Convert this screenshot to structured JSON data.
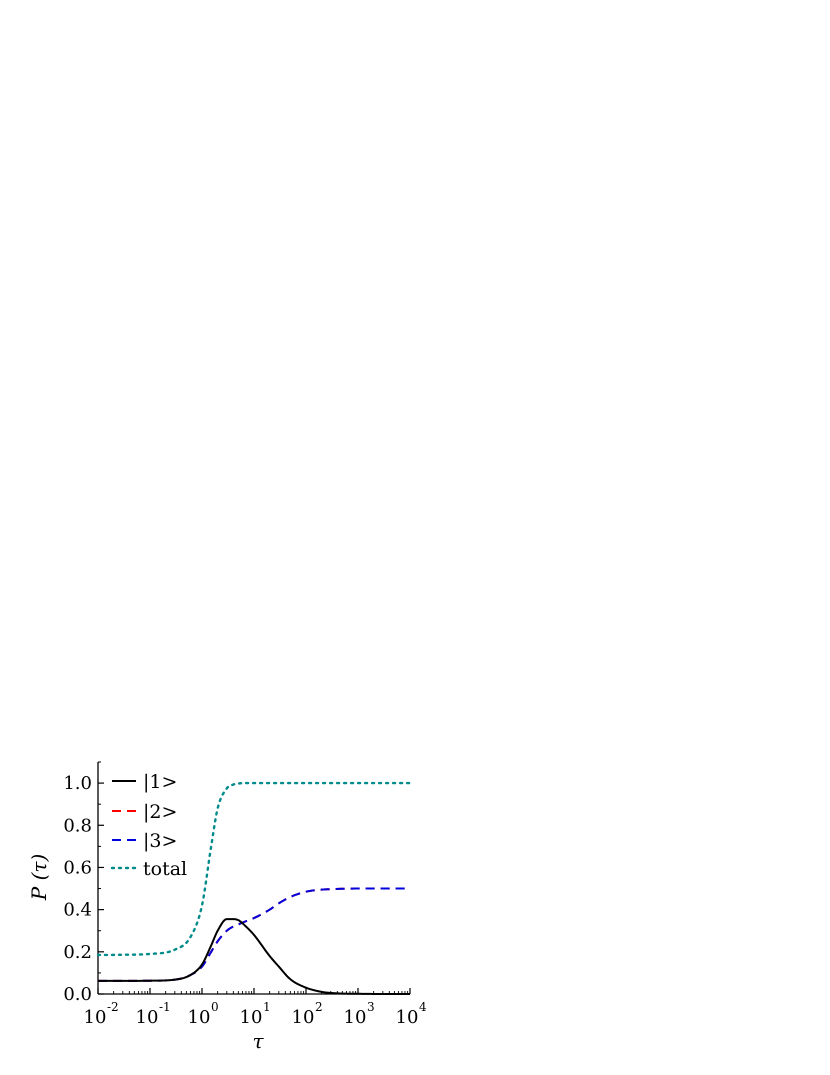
{
  "chart_data": {
    "type": "line",
    "xscale": "log",
    "xlim": [
      0.01,
      10000
    ],
    "ylim": [
      0,
      1.1
    ],
    "xlabel": "τ",
    "ylabel": "P (τ)",
    "grid": false,
    "legend_position": "top-left",
    "x_ticks": [
      {
        "base": "10",
        "exp": "-2"
      },
      {
        "base": "10",
        "exp": "-1"
      },
      {
        "base": "10",
        "exp": "0"
      },
      {
        "base": "10",
        "exp": "1"
      },
      {
        "base": "10",
        "exp": "2"
      },
      {
        "base": "10",
        "exp": "3"
      },
      {
        "base": "10",
        "exp": "4"
      }
    ],
    "y_ticks": [
      "0.0",
      "0.2",
      "0.4",
      "0.6",
      "0.8",
      "1.0"
    ],
    "x": [
      0.01,
      0.03,
      0.1,
      0.3,
      0.6,
      1,
      1.5,
      2,
      3,
      4,
      5,
      7,
      10,
      20,
      30,
      50,
      100,
      200,
      300,
      500,
      1000,
      3000,
      10000
    ],
    "series": [
      {
        "name": "|1>",
        "color": "#000000",
        "style": "solid",
        "values": [
          0.062,
          0.062,
          0.063,
          0.068,
          0.09,
          0.14,
          0.23,
          0.3,
          0.355,
          0.355,
          0.35,
          0.32,
          0.28,
          0.18,
          0.13,
          0.07,
          0.03,
          0.01,
          0.005,
          0.002,
          0.001,
          0.0,
          0.0
        ]
      },
      {
        "name": "|2>",
        "color": "#ff0000",
        "style": "dashed",
        "values": [
          0.062,
          0.062,
          0.063,
          0.068,
          0.09,
          0.13,
          0.2,
          0.25,
          0.3,
          0.32,
          0.33,
          0.345,
          0.36,
          0.4,
          0.43,
          0.46,
          0.485,
          0.495,
          0.497,
          0.499,
          0.5,
          0.5,
          0.5
        ]
      },
      {
        "name": "|3>",
        "color": "#0000dd",
        "style": "dashed",
        "values": [
          0.062,
          0.062,
          0.063,
          0.068,
          0.09,
          0.13,
          0.2,
          0.25,
          0.3,
          0.32,
          0.33,
          0.345,
          0.36,
          0.4,
          0.43,
          0.46,
          0.485,
          0.495,
          0.497,
          0.499,
          0.5,
          0.5,
          0.5
        ]
      },
      {
        "name": "total",
        "color": "#008b8b",
        "style": "dotted",
        "values": [
          0.185,
          0.186,
          0.19,
          0.21,
          0.27,
          0.42,
          0.7,
          0.88,
          0.975,
          0.993,
          0.998,
          1.0,
          1.0,
          1.0,
          1.0,
          1.0,
          1.0,
          1.0,
          1.0,
          1.0,
          1.0,
          1.0,
          1.0
        ]
      }
    ]
  }
}
